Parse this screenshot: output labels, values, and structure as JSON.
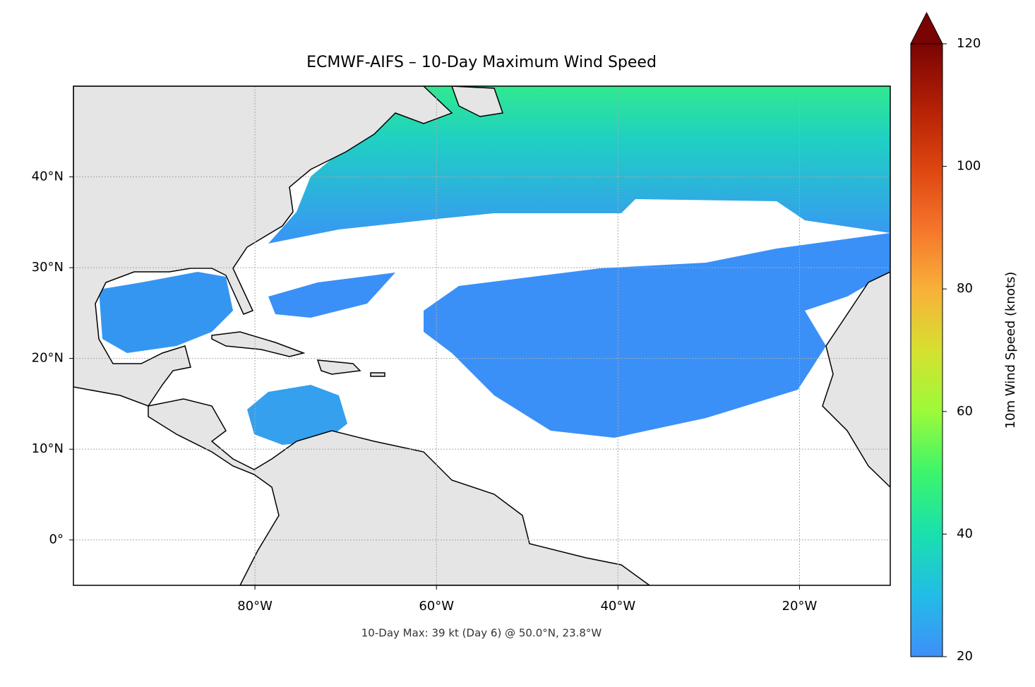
{
  "chart_data": {
    "type": "map",
    "title": "ECMWF-AIFS – 10-Day Maximum Wind Speed",
    "annotation": "10-Day Max: 39 kt (Day 6) @ 50.0°N, 23.8°W",
    "xlim": [
      -100,
      -10
    ],
    "ylim": [
      -5,
      50
    ],
    "xticks": [
      {
        "value": -80,
        "label": "80°W"
      },
      {
        "value": -60,
        "label": "60°W"
      },
      {
        "value": -40,
        "label": "40°W"
      },
      {
        "value": -20,
        "label": "20°W"
      }
    ],
    "yticks": [
      {
        "value": 0,
        "label": "0°"
      },
      {
        "value": 10,
        "label": "10°N"
      },
      {
        "value": 20,
        "label": "20°N"
      },
      {
        "value": 30,
        "label": "30°N"
      },
      {
        "value": 40,
        "label": "40°N"
      }
    ],
    "grid": true,
    "colorbar": {
      "label": "10m Wind Speed (knots)",
      "lim": [
        20,
        120
      ],
      "ticks": [
        20,
        40,
        60,
        80,
        100,
        120
      ],
      "extend": "max",
      "colormap": "turbo"
    }
  }
}
